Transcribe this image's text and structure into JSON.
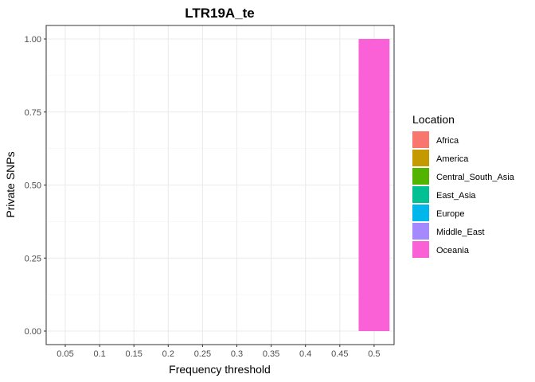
{
  "chart_data": {
    "type": "bar",
    "title": "LTR19A_te",
    "xlabel": "Frequency threshold",
    "ylabel": "Private SNPs",
    "categories": [
      "0.05",
      "0.1",
      "0.15",
      "0.2",
      "0.25",
      "0.3",
      "0.35",
      "0.4",
      "0.45",
      "0.5"
    ],
    "yticks": [
      "0.00",
      "0.25",
      "0.50",
      "0.75",
      "1.00"
    ],
    "ylim": [
      0,
      1
    ],
    "grid": true,
    "legend_position": "right",
    "legend_title": "Location",
    "series": [
      {
        "name": "Africa",
        "color": "#F8766D",
        "values": [
          0,
          0,
          0,
          0,
          0,
          0,
          0,
          0,
          0,
          0
        ]
      },
      {
        "name": "America",
        "color": "#C49A00",
        "values": [
          0,
          0,
          0,
          0,
          0,
          0,
          0,
          0,
          0,
          0
        ]
      },
      {
        "name": "Central_South_Asia",
        "color": "#53B400",
        "values": [
          0,
          0,
          0,
          0,
          0,
          0,
          0,
          0,
          0,
          0
        ]
      },
      {
        "name": "East_Asia",
        "color": "#00C094",
        "values": [
          0,
          0,
          0,
          0,
          0,
          0,
          0,
          0,
          0,
          0
        ]
      },
      {
        "name": "Europe",
        "color": "#00B6EB",
        "values": [
          0,
          0,
          0,
          0,
          0,
          0,
          0,
          0,
          0,
          0
        ]
      },
      {
        "name": "Middle_East",
        "color": "#A58AFF",
        "values": [
          0,
          0,
          0,
          0,
          0,
          0,
          0,
          0,
          0,
          0
        ]
      },
      {
        "name": "Oceania",
        "color": "#FB61D7",
        "values": [
          0,
          0,
          0,
          0,
          0,
          0,
          0,
          0,
          0,
          1
        ]
      }
    ]
  }
}
